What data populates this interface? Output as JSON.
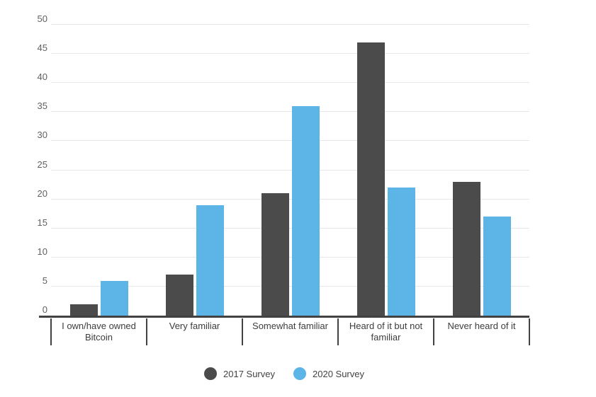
{
  "chart_data": {
    "type": "bar",
    "title": "",
    "categories": [
      "I own/have owned Bitcoin",
      "Very familiar",
      "Somewhat familiar",
      "Heard of it but not familiar",
      "Never heard of it"
    ],
    "series": [
      {
        "name": "2017 Survey",
        "color": "#4b4b4b",
        "values": [
          2,
          7,
          21,
          47,
          23
        ]
      },
      {
        "name": "2020 Survey",
        "color": "#5cb5e6",
        "values": [
          6,
          19,
          36,
          22,
          17
        ]
      }
    ],
    "xlabel": "",
    "ylabel": "",
    "ylim": [
      0,
      50
    ],
    "yticks": [
      "0",
      "5",
      "10",
      "15",
      "20",
      "25",
      "30",
      "35",
      "40",
      "45",
      "50"
    ],
    "grid": true,
    "legend_position": "bottom",
    "colors": {
      "background": "#ffffff",
      "gridline": "#e7e7e7",
      "axis_line": "#424242",
      "tick_label": "#616161",
      "category_label": "#3d3d3d",
      "legend_label": "#424242"
    }
  }
}
